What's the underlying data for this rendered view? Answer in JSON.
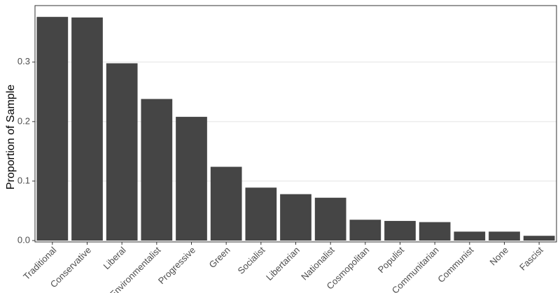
{
  "chart_data": {
    "type": "bar",
    "ylabel": "Proportion of Sample",
    "categories": [
      "Traditional",
      "Conservative",
      "Liberal",
      "Environmentalist",
      "Progressive",
      "Green",
      "Socialist",
      "Libertarian",
      "Nationalist",
      "Cosmopolitan",
      "Populist",
      "Communitarian",
      "Communist",
      "None",
      "Fascist"
    ],
    "values": [
      0.376,
      0.375,
      0.298,
      0.238,
      0.208,
      0.124,
      0.089,
      0.078,
      0.072,
      0.035,
      0.033,
      0.031,
      0.015,
      0.015,
      0.008
    ],
    "color": "#454545",
    "ylim": [
      0,
      0.395
    ],
    "yticks": [
      {
        "value": 0,
        "label": "0.0"
      },
      0.1,
      0.2,
      0.3
    ],
    "grid": true
  }
}
